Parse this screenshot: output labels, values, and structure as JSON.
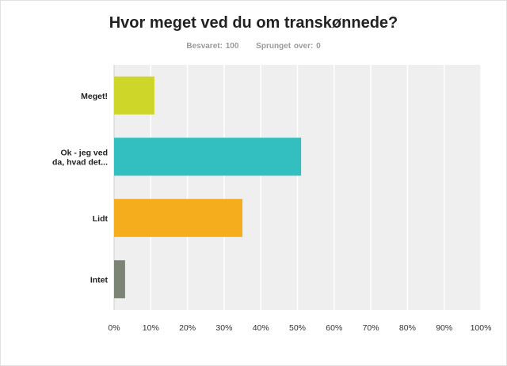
{
  "title": "Hvor meget ved du om transkønnede?",
  "stats": {
    "answered": "Besvaret: 100",
    "skipped": "Sprunget over: 0"
  },
  "chart_data": {
    "type": "bar",
    "orientation": "horizontal",
    "title": "Hvor meget ved du om transkønnede?",
    "categories": [
      [
        "Meget!"
      ],
      [
        "Ok - jeg ved",
        "da, hvad det..."
      ],
      [
        "Lidt"
      ],
      [
        "Intet"
      ]
    ],
    "values": [
      11,
      51,
      35,
      3
    ],
    "colors": [
      "#cfd62a",
      "#33bfbf",
      "#f5ad1d",
      "#7c8476"
    ],
    "xlim": [
      0,
      100
    ],
    "xticks": [
      "0%",
      "10%",
      "20%",
      "30%",
      "40%",
      "50%",
      "60%",
      "70%",
      "80%",
      "90%",
      "100%"
    ],
    "grid": true,
    "legend": "none"
  }
}
